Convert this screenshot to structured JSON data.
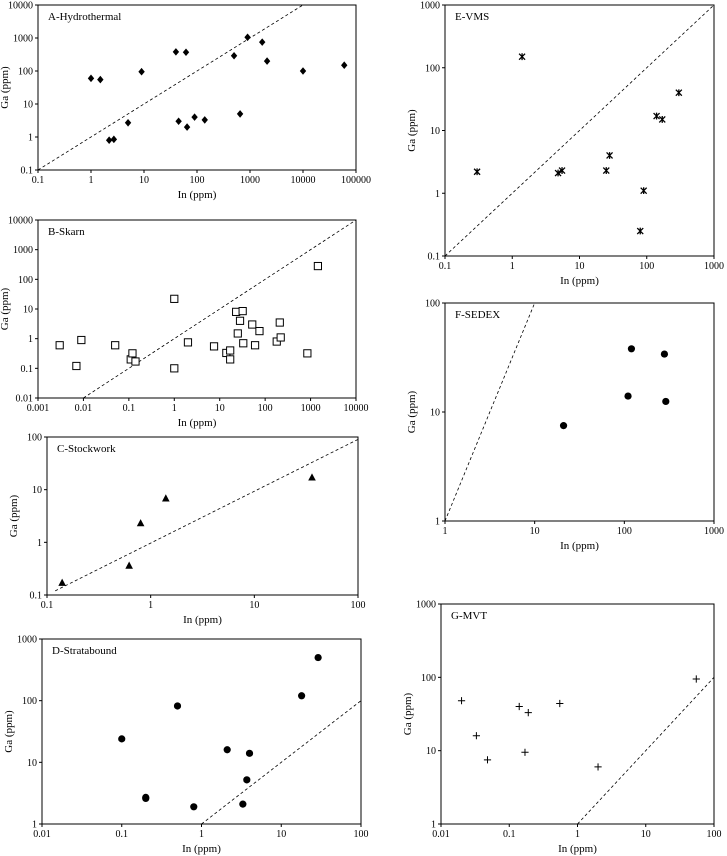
{
  "figure": {
    "panel_count": 7
  },
  "chart_data": [
    {
      "id": "A",
      "type": "scatter",
      "title": "A-Hydrothermal",
      "xlabel": "In (ppm)",
      "ylabel": "Ga (ppm)",
      "xscale": "log",
      "yscale": "log",
      "xlim": [
        0.1,
        100000
      ],
      "ylim": [
        0.1,
        10000
      ],
      "xticks": [
        0.1,
        1,
        10,
        100,
        1000,
        10000,
        100000
      ],
      "xticklabels": [
        "0.1",
        "1",
        "10",
        "100",
        "1000",
        "10000",
        "100000"
      ],
      "yticks": [
        0.1,
        1,
        10,
        100,
        1000,
        10000
      ],
      "yticklabels": [
        "0.1",
        "1",
        "10",
        "100",
        "1000",
        "10000"
      ],
      "marker": "diamond",
      "reference_line": "1:1 (dashed)",
      "points": [
        [
          1,
          60
        ],
        [
          1.5,
          55
        ],
        [
          2.2,
          0.8
        ],
        [
          2.7,
          0.85
        ],
        [
          5,
          2.7
        ],
        [
          9,
          95
        ],
        [
          40,
          380
        ],
        [
          45,
          3
        ],
        [
          62,
          370
        ],
        [
          65,
          2
        ],
        [
          90,
          4
        ],
        [
          140,
          3.3
        ],
        [
          500,
          290
        ],
        [
          650,
          5
        ],
        [
          900,
          1050
        ],
        [
          1700,
          750
        ],
        [
          2100,
          200
        ],
        [
          10000,
          100
        ],
        [
          60000,
          150
        ]
      ]
    },
    {
      "id": "B",
      "type": "scatter",
      "title": "B-Skarn",
      "xlabel": "In (ppm)",
      "ylabel": "Ga (ppm)",
      "xscale": "log",
      "yscale": "log",
      "xlim": [
        0.001,
        10000
      ],
      "ylim": [
        0.01,
        10000
      ],
      "xticks": [
        0.001,
        0.01,
        0.1,
        1,
        10,
        100,
        1000,
        10000
      ],
      "xticklabels": [
        "0.001",
        "0.01",
        "0.1",
        "1",
        "10",
        "100",
        "1000",
        "10000"
      ],
      "yticks": [
        0.01,
        0.1,
        1,
        10,
        100,
        1000,
        10000
      ],
      "yticklabels": [
        "0.01",
        "0.1",
        "1",
        "10",
        "100",
        "1000",
        "10000"
      ],
      "marker": "open-square",
      "reference_line": "1:1 (dashed)",
      "points": [
        [
          0.003,
          0.6
        ],
        [
          0.007,
          0.12
        ],
        [
          0.009,
          0.9
        ],
        [
          0.05,
          0.6
        ],
        [
          0.11,
          0.2
        ],
        [
          0.12,
          0.32
        ],
        [
          0.14,
          0.17
        ],
        [
          1,
          22
        ],
        [
          1,
          0.1
        ],
        [
          2,
          0.75
        ],
        [
          7.5,
          0.55
        ],
        [
          14,
          0.33
        ],
        [
          17,
          0.4
        ],
        [
          17,
          0.2
        ],
        [
          23,
          8
        ],
        [
          25,
          1.5
        ],
        [
          28,
          4
        ],
        [
          32,
          8.5
        ],
        [
          33,
          0.7
        ],
        [
          52,
          3
        ],
        [
          60,
          0.6
        ],
        [
          75,
          1.8
        ],
        [
          180,
          0.8
        ],
        [
          210,
          3.5
        ],
        [
          220,
          1.1
        ],
        [
          850,
          0.32
        ],
        [
          1450,
          280
        ]
      ]
    },
    {
      "id": "C",
      "type": "scatter",
      "title": "C-Stockwork",
      "xlabel": "In (ppm)",
      "ylabel": "Ga (ppm)",
      "xscale": "log",
      "yscale": "log",
      "xlim": [
        0.1,
        100
      ],
      "ylim": [
        0.1,
        100
      ],
      "xticks": [
        0.1,
        1,
        10,
        100
      ],
      "xticklabels": [
        "0.1",
        "1",
        "10",
        "100"
      ],
      "yticks": [
        0.1,
        1,
        10,
        100
      ],
      "yticklabels": [
        "0.1",
        "1",
        "10",
        "100"
      ],
      "marker": "triangle",
      "reference_line": "dashed trend",
      "points": [
        [
          0.14,
          0.17
        ],
        [
          0.62,
          0.36
        ],
        [
          0.8,
          2.3
        ],
        [
          1.4,
          6.8
        ],
        [
          36,
          17
        ]
      ]
    },
    {
      "id": "D",
      "type": "scatter",
      "title": "D-Stratabound",
      "xlabel": "In (ppm)",
      "ylabel": "Ga (ppm)",
      "xscale": "log",
      "yscale": "log",
      "xlim": [
        0.01,
        100
      ],
      "ylim": [
        1,
        1000
      ],
      "xticks": [
        0.01,
        0.1,
        1,
        10,
        100
      ],
      "xticklabels": [
        "0.01",
        "0.1",
        "1",
        "10",
        "100"
      ],
      "yticks": [
        1,
        10,
        100,
        1000
      ],
      "yticklabels": [
        "1",
        "10",
        "100",
        "1000"
      ],
      "marker": "circle",
      "reference_line": "1:1 (dashed)",
      "points": [
        [
          0.1,
          24
        ],
        [
          0.2,
          2.7
        ],
        [
          0.2,
          2.6
        ],
        [
          0.5,
          82
        ],
        [
          0.8,
          1.9
        ],
        [
          2.1,
          16
        ],
        [
          3.3,
          2.1
        ],
        [
          3.7,
          5.2
        ],
        [
          4,
          14
        ],
        [
          18,
          120
        ],
        [
          29,
          500
        ]
      ]
    },
    {
      "id": "E",
      "type": "scatter",
      "title": "E-VMS",
      "xlabel": "In (ppm)",
      "ylabel": "Ga (ppm)",
      "xscale": "log",
      "yscale": "log",
      "xlim": [
        0.1,
        1000
      ],
      "ylim": [
        0.1,
        1000
      ],
      "xticks": [
        0.1,
        1,
        10,
        100,
        1000
      ],
      "xticklabels": [
        "0.1",
        "1",
        "10",
        "100",
        "1000"
      ],
      "yticks": [
        0.1,
        1,
        10,
        100,
        1000
      ],
      "yticklabels": [
        "0.1",
        "1",
        "10",
        "100",
        "1000"
      ],
      "marker": "asterisk",
      "reference_line": "1:1 (dashed)",
      "points": [
        [
          0.3,
          2.2
        ],
        [
          1.4,
          150
        ],
        [
          4.8,
          2.1
        ],
        [
          5.5,
          2.3
        ],
        [
          25,
          2.3
        ],
        [
          28,
          4
        ],
        [
          80,
          0.25
        ],
        [
          90,
          1.1
        ],
        [
          140,
          17
        ],
        [
          170,
          15
        ],
        [
          300,
          40
        ]
      ]
    },
    {
      "id": "F",
      "type": "scatter",
      "title": "F-SEDEX",
      "xlabel": "In (ppm)",
      "ylabel": "Ga (ppm)",
      "xscale": "log",
      "yscale": "log",
      "xlim": [
        1,
        1000
      ],
      "ylim": [
        1,
        100
      ],
      "xticks": [
        1,
        10,
        100,
        1000
      ],
      "xticklabels": [
        "1",
        "10",
        "100",
        "1000"
      ],
      "yticks": [
        1,
        10,
        100
      ],
      "yticklabels": [
        "1",
        "10",
        "100"
      ],
      "marker": "circle",
      "reference_line": "1:1 (dashed)",
      "points": [
        [
          21,
          7.5
        ],
        [
          110,
          14
        ],
        [
          120,
          38
        ],
        [
          280,
          34
        ],
        [
          290,
          12.5
        ]
      ]
    },
    {
      "id": "G",
      "type": "scatter",
      "title": "G-MVT",
      "xlabel": "In (ppm)",
      "ylabel": "Ga (ppm)",
      "xscale": "log",
      "yscale": "log",
      "xlim": [
        0.01,
        100
      ],
      "ylim": [
        1,
        1000
      ],
      "xticks": [
        0.01,
        0.1,
        1,
        10,
        100
      ],
      "xticklabels": [
        "0.01",
        "0.1",
        "1",
        "10",
        "100"
      ],
      "yticks": [
        1,
        10,
        100,
        1000
      ],
      "yticklabels": [
        "1",
        "10",
        "100",
        "1000"
      ],
      "marker": "plus",
      "reference_line": "1:1 (dashed)",
      "points": [
        [
          0.02,
          48
        ],
        [
          0.033,
          16
        ],
        [
          0.048,
          7.5
        ],
        [
          0.14,
          40
        ],
        [
          0.17,
          9.5
        ],
        [
          0.19,
          33
        ],
        [
          0.55,
          44
        ],
        [
          2,
          6
        ],
        [
          55,
          95
        ]
      ]
    }
  ]
}
